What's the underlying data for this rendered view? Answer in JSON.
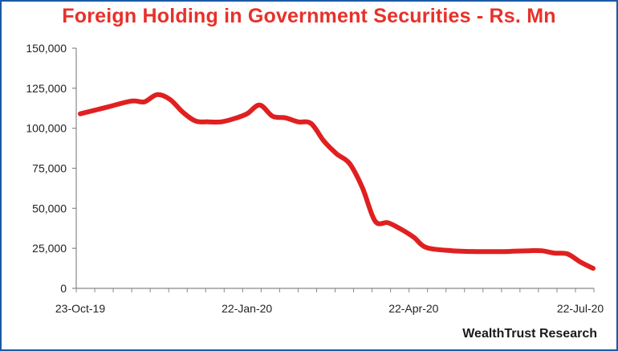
{
  "chart_data": {
    "type": "line",
    "title": "Foreign Holding in Government Securities - Rs. Mn",
    "source": "WealthTrust Research",
    "xlabel": "",
    "ylabel": "",
    "ylim": [
      0,
      150000
    ],
    "y_ticks": [
      "0",
      "25,000",
      "50,000",
      "75,000",
      "100,000",
      "125,000",
      "150,000"
    ],
    "y_tick_values": [
      0,
      25000,
      50000,
      75000,
      100000,
      125000,
      150000
    ],
    "x_ticks": [
      "23-Oct-19",
      "22-Jan-20",
      "22-Apr-20",
      "22-Jul-20"
    ],
    "x_tick_dates": [
      "2019-10-23",
      "2020-01-22",
      "2020-04-22",
      "2020-07-22"
    ],
    "grid": false,
    "legend": "none",
    "line_color": "#e02020",
    "series": [
      {
        "x": [
          "2019-10-23",
          "2019-11-06",
          "2019-11-20",
          "2019-11-27",
          "2019-12-04",
          "2019-12-11",
          "2019-12-18",
          "2019-12-25",
          "2020-01-01",
          "2020-01-08",
          "2020-01-15",
          "2020-01-22",
          "2020-01-29",
          "2020-02-05",
          "2020-02-12",
          "2020-02-19",
          "2020-02-26",
          "2020-03-04",
          "2020-03-11",
          "2020-03-18",
          "2020-03-25",
          "2020-04-01",
          "2020-04-08",
          "2020-04-15",
          "2020-04-22",
          "2020-04-29",
          "2020-05-13",
          "2020-05-27",
          "2020-06-10",
          "2020-06-24",
          "2020-07-01",
          "2020-07-08",
          "2020-07-15",
          "2020-07-22",
          "2020-07-29"
        ],
        "values": [
          109000,
          113000,
          117000,
          116500,
          121000,
          118000,
          110000,
          104500,
          104000,
          104000,
          106000,
          109000,
          114500,
          107500,
          106500,
          104000,
          103000,
          92000,
          84000,
          78000,
          63000,
          42000,
          41000,
          37000,
          32000,
          25500,
          23500,
          23000,
          23000,
          23500,
          23500,
          22000,
          21500,
          16500,
          12500
        ]
      }
    ]
  }
}
